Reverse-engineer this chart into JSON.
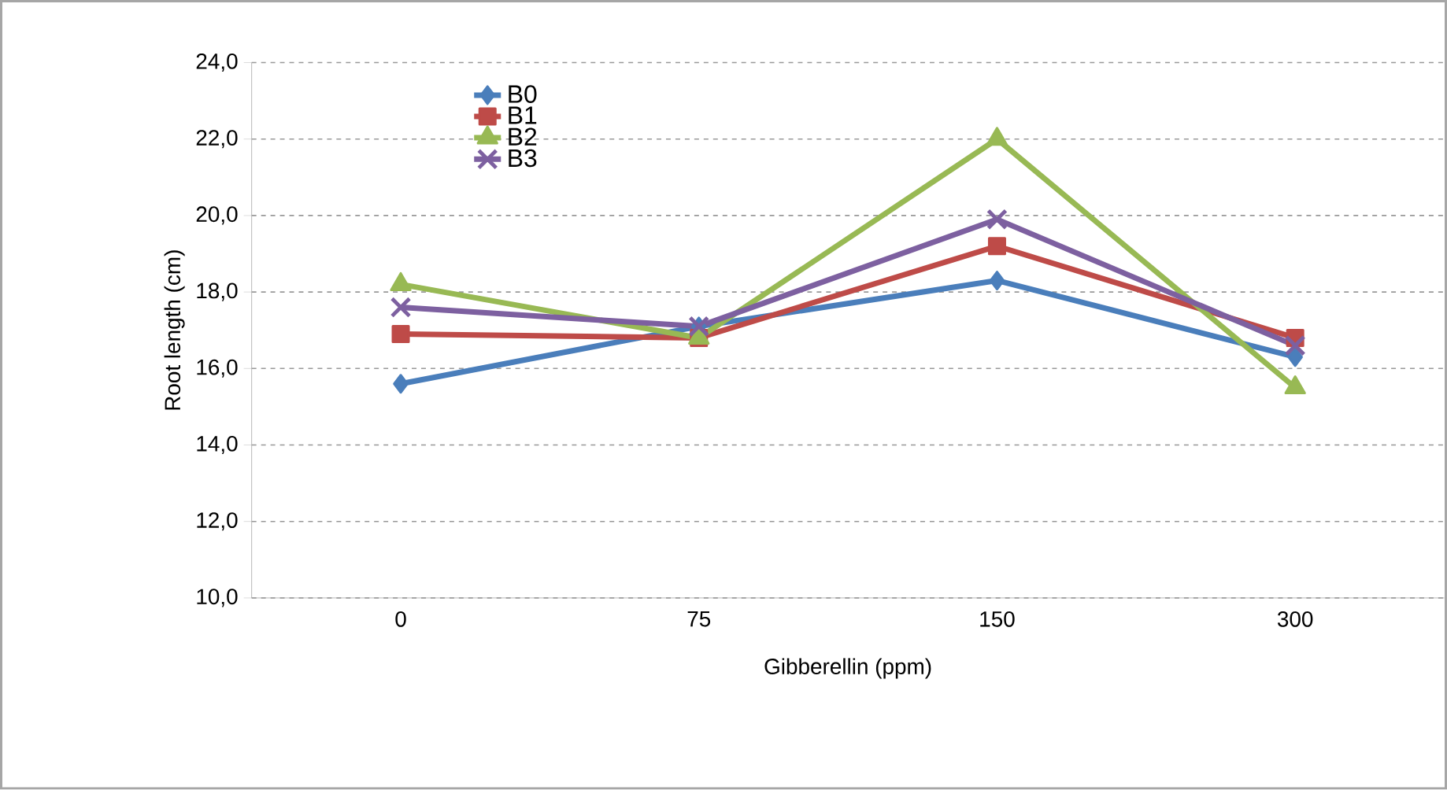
{
  "chart_data": {
    "type": "line",
    "xlabel": "Gibberellin (ppm)",
    "ylabel": "Root length (cm)",
    "categories": [
      "0",
      "75",
      "150",
      "300"
    ],
    "series": [
      {
        "name": "B0",
        "color": "#4a7ebb",
        "marker": "diamond",
        "values": [
          15.6,
          17.1,
          18.3,
          16.3
        ]
      },
      {
        "name": "B1",
        "color": "#be4b48",
        "marker": "square",
        "values": [
          16.9,
          16.8,
          19.2,
          16.8
        ]
      },
      {
        "name": "B2",
        "color": "#98b954",
        "marker": "triangle",
        "values": [
          18.2,
          16.8,
          22.0,
          15.5
        ]
      },
      {
        "name": "B3",
        "color": "#7d60a0",
        "marker": "cross",
        "values": [
          17.6,
          17.1,
          19.9,
          16.6
        ]
      }
    ],
    "ylim": [
      10,
      24
    ],
    "yticks": [
      {
        "value": 10,
        "label": "10,0"
      },
      {
        "value": 12,
        "label": "12,0"
      },
      {
        "value": 14,
        "label": "14,0"
      },
      {
        "value": 16,
        "label": "16,0"
      },
      {
        "value": 18,
        "label": "18,0"
      },
      {
        "value": 20,
        "label": "20,0"
      },
      {
        "value": 22,
        "label": "22,0"
      },
      {
        "value": 24,
        "label": "24,0"
      }
    ],
    "grid": "y",
    "legend": "top left",
    "line_style": "solid"
  }
}
